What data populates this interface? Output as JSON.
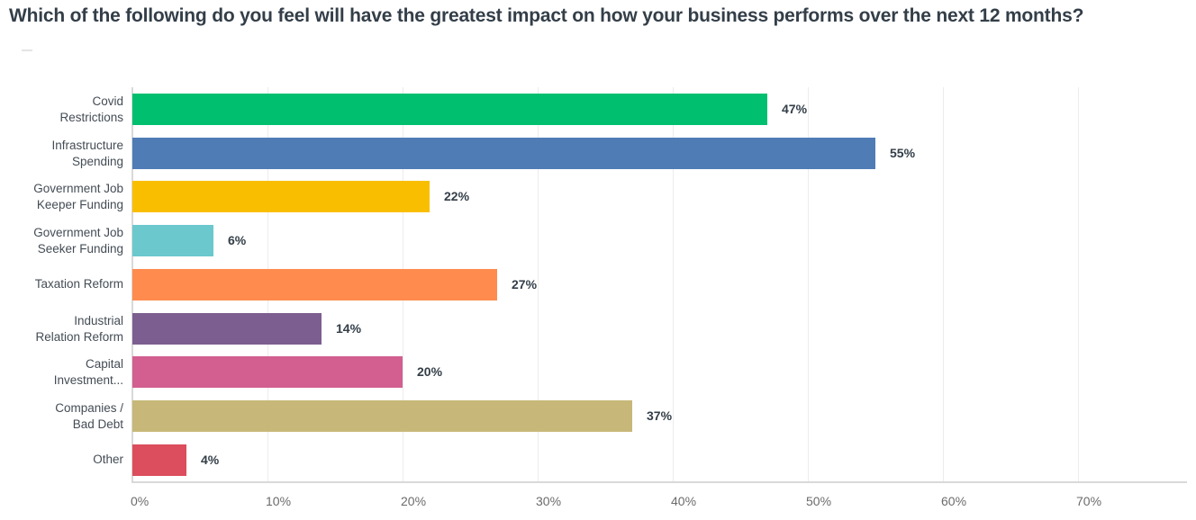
{
  "title": "Which of the following do you feel will have the greatest impact on how your business performs over the next 12 months?",
  "chart_data": {
    "type": "bar",
    "orientation": "horizontal",
    "title": "Which of the following do you feel will have the greatest impact on how your business performs over the next 12 months?",
    "xlabel": "",
    "ylabel": "",
    "xlim": [
      0,
      78
    ],
    "grid": true,
    "legend": "none",
    "x_ticks": [
      "0%",
      "10%",
      "20%",
      "30%",
      "40%",
      "50%",
      "60%",
      "70%"
    ],
    "categories": [
      "Covid Restrictions",
      "Infrastructure Spending",
      "Government Job Keeper Funding",
      "Government Job Seeker Funding",
      "Taxation Reform",
      "Industrial Relation Reform",
      "Capital Investment...",
      "Companies / Bad Debt",
      "Other"
    ],
    "values": [
      47,
      55,
      22,
      6,
      27,
      14,
      20,
      37,
      4
    ],
    "bars": [
      {
        "line1": "Covid",
        "line2": "Restrictions",
        "value": 47,
        "pct_label": "47%",
        "color": "#00bf6f"
      },
      {
        "line1": "Infrastructure",
        "line2": "Spending",
        "value": 55,
        "pct_label": "55%",
        "color": "#507cb6"
      },
      {
        "line1": "Government Job",
        "line2": "Keeper Funding",
        "value": 22,
        "pct_label": "22%",
        "color": "#f9be00"
      },
      {
        "line1": "Government Job",
        "line2": "Seeker Funding",
        "value": 6,
        "pct_label": "6%",
        "color": "#6bc8cd"
      },
      {
        "line1": "Taxation Reform",
        "line2": "",
        "value": 27,
        "pct_label": "27%",
        "color": "#ff8b4f"
      },
      {
        "line1": "Industrial",
        "line2": "Relation Reform",
        "value": 14,
        "pct_label": "14%",
        "color": "#7d5e90"
      },
      {
        "line1": "Capital",
        "line2": "Investment...",
        "value": 20,
        "pct_label": "20%",
        "color": "#d25f90"
      },
      {
        "line1": "Companies /",
        "line2": "Bad Debt",
        "value": 37,
        "pct_label": "37%",
        "color": "#c7b879"
      },
      {
        "line1": "Other",
        "line2": "",
        "value": 4,
        "pct_label": "4%",
        "color": "#dc4d5d"
      }
    ]
  }
}
